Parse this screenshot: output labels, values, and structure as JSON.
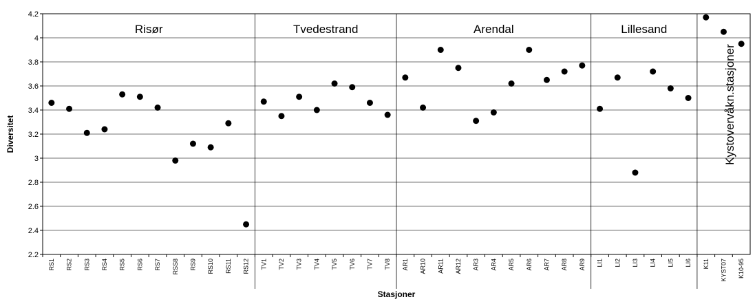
{
  "chart_data": {
    "type": "scatter",
    "y_label": "Diversitet",
    "x_label": "Stasjoner",
    "ylim": [
      2.2,
      4.2
    ],
    "yticks": [
      2.2,
      2.4,
      2.6,
      2.8,
      3,
      3.2,
      3.4,
      3.6,
      3.8,
      4,
      4.2
    ],
    "grid": true,
    "color": "#000000",
    "groups": [
      {
        "name": "Risør",
        "categories": [
          "RS1",
          "RS2",
          "RS3",
          "RS4",
          "RS5",
          "RS6",
          "RS7",
          "RSS8",
          "RS9",
          "RS10",
          "RS11",
          "RS12"
        ],
        "values": [
          3.46,
          3.41,
          3.21,
          3.24,
          3.53,
          3.51,
          3.42,
          2.98,
          3.12,
          3.09,
          3.29,
          2.45
        ]
      },
      {
        "name": "Tvedestrand",
        "categories": [
          "TV1",
          "TV2",
          "TV3",
          "TV4",
          "TV5",
          "TV6",
          "TV7",
          "TV8"
        ],
        "values": [
          3.47,
          3.35,
          3.51,
          3.4,
          3.62,
          3.59,
          3.46,
          3.36
        ]
      },
      {
        "name": "Arendal",
        "categories": [
          "AR1",
          "AR10",
          "AR11",
          "AR12",
          "AR3",
          "AR4",
          "AR5",
          "AR6",
          "AR7",
          "AR8",
          "AR9"
        ],
        "values": [
          3.67,
          3.42,
          3.9,
          3.75,
          3.31,
          3.38,
          3.62,
          3.9,
          3.65,
          3.72,
          3.77
        ]
      },
      {
        "name": "Lillesand",
        "categories": [
          "LI1",
          "LI2",
          "LI3",
          "LI4",
          "LI5",
          "LI6"
        ],
        "values": [
          3.41,
          3.67,
          2.88,
          3.72,
          3.58,
          3.5
        ]
      },
      {
        "name": "Kystovervåkn.stasjoner",
        "categories": [
          "K11",
          "KYST07",
          "K10-95"
        ],
        "values": [
          4.17,
          4.05,
          3.95
        ]
      }
    ]
  }
}
